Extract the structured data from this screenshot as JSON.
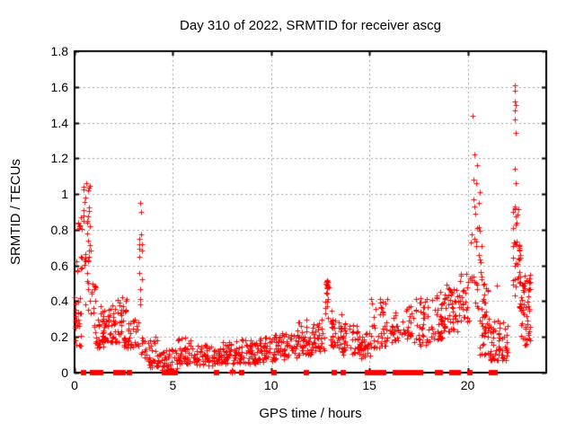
{
  "page": {
    "background": "#ffffff"
  },
  "chart_data": {
    "type": "scatter",
    "title": "Day 310 of 2022, SRMTID for receiver ascg",
    "xlabel": "GPS time / hours",
    "ylabel": "SRMTID / TECUs",
    "xlim": [
      0,
      24
    ],
    "ylim": [
      0,
      1.8
    ],
    "xticks": [
      0,
      5,
      10,
      15,
      20
    ],
    "xtick_labels": [
      "0",
      "5",
      "10",
      "15",
      "20"
    ],
    "yticks": [
      0,
      0.2,
      0.4,
      0.6,
      0.8,
      1.0,
      1.2,
      1.4,
      1.6,
      1.8
    ],
    "ytick_labels": [
      "0",
      "0.2",
      "0.4",
      "0.6",
      "0.8",
      "1",
      "1.2",
      "1.4",
      "1.6",
      "1.8"
    ],
    "grid": "dashed",
    "legend": "none",
    "marker": "plus",
    "marker_color": "#ff0000",
    "zero_marker": "filled-square",
    "grid_color": "#a0a0a0",
    "axis_color": "#000000",
    "seed": 310,
    "clusters_format": "[x_start, x_end, y_min, y_max, count, low_bias]",
    "clusters": [
      [
        0.0,
        0.35,
        0.15,
        0.45,
        24,
        1.3
      ],
      [
        0.05,
        0.4,
        0.55,
        0.68,
        7,
        1
      ],
      [
        0.1,
        0.4,
        0.8,
        0.88,
        7,
        1
      ],
      [
        0.45,
        0.78,
        0.85,
        1.06,
        13,
        1
      ],
      [
        0.45,
        0.85,
        0.6,
        0.85,
        16,
        1
      ],
      [
        0.55,
        1.1,
        0.32,
        0.58,
        18,
        1.2
      ],
      [
        0.9,
        1.6,
        0.14,
        0.3,
        36,
        1.2
      ],
      [
        1.3,
        2.4,
        0.17,
        0.38,
        55,
        1.3
      ],
      [
        2.2,
        2.65,
        0.27,
        0.44,
        16,
        1
      ],
      [
        2.5,
        3.3,
        0.14,
        0.3,
        40,
        1.2
      ],
      [
        3.28,
        3.44,
        0.33,
        0.78,
        12,
        1
      ],
      [
        3.4,
        4.3,
        0.03,
        0.2,
        45,
        1.4
      ],
      [
        4.3,
        5.2,
        0.01,
        0.13,
        42,
        1.2
      ],
      [
        5.2,
        6.2,
        0.05,
        0.2,
        52,
        1.4
      ],
      [
        6.2,
        7.2,
        0.04,
        0.16,
        50,
        1.3
      ],
      [
        7.2,
        8.2,
        0.05,
        0.18,
        55,
        1.3
      ],
      [
        8.2,
        9.2,
        0.05,
        0.19,
        55,
        1.3
      ],
      [
        9.2,
        10.2,
        0.06,
        0.2,
        55,
        1.3
      ],
      [
        10.2,
        11.3,
        0.07,
        0.22,
        58,
        1.3
      ],
      [
        11.3,
        12.1,
        0.1,
        0.3,
        45,
        1.4
      ],
      [
        12.1,
        12.7,
        0.12,
        0.3,
        35,
        1.3
      ],
      [
        12.72,
        12.95,
        0.27,
        0.52,
        20,
        0.8
      ],
      [
        13.0,
        13.6,
        0.14,
        0.37,
        35,
        1.3
      ],
      [
        13.6,
        14.4,
        0.1,
        0.28,
        40,
        1.3
      ],
      [
        14.4,
        15.1,
        0.08,
        0.22,
        40,
        1.2
      ],
      [
        15.1,
        15.95,
        0.14,
        0.42,
        42,
        1.4
      ],
      [
        16.0,
        16.6,
        0.17,
        0.35,
        24,
        1.2
      ],
      [
        16.6,
        17.15,
        0.19,
        0.38,
        24,
        1.2
      ],
      [
        17.2,
        18.05,
        0.15,
        0.43,
        40,
        1.3
      ],
      [
        18.1,
        18.8,
        0.18,
        0.46,
        40,
        1.3
      ],
      [
        18.8,
        19.5,
        0.22,
        0.5,
        45,
        1.2
      ],
      [
        19.5,
        20.15,
        0.28,
        0.56,
        30,
        1.2
      ],
      [
        20.15,
        20.75,
        0.5,
        0.85,
        22,
        1.1
      ],
      [
        20.3,
        21.05,
        0.3,
        0.5,
        20,
        1
      ],
      [
        20.6,
        21.15,
        0.1,
        0.33,
        30,
        1.2
      ],
      [
        21.15,
        22.05,
        0.07,
        0.3,
        60,
        1.5
      ],
      [
        22.25,
        22.6,
        0.72,
        0.95,
        12,
        1
      ],
      [
        22.3,
        22.7,
        0.42,
        0.72,
        25,
        1
      ],
      [
        22.6,
        23.2,
        0.28,
        0.55,
        40,
        1.1
      ],
      [
        22.7,
        23.2,
        0.14,
        0.28,
        20,
        1
      ],
      [
        7.85,
        8.18,
        0.0,
        0.015,
        5,
        1
      ]
    ],
    "points": [
      [
        0.6,
        1.06
      ],
      [
        3.34,
        0.95
      ],
      [
        3.36,
        0.9
      ],
      [
        12.8,
        0.51
      ],
      [
        12.82,
        0.5
      ],
      [
        19.3,
        0.47
      ],
      [
        21.5,
        0.49
      ],
      [
        20.25,
        1.44
      ],
      [
        20.35,
        1.22
      ],
      [
        20.5,
        1.16
      ],
      [
        20.28,
        1.08
      ],
      [
        20.45,
        1.06
      ],
      [
        20.6,
        1.01
      ],
      [
        20.3,
        0.97
      ],
      [
        20.55,
        0.95
      ],
      [
        20.35,
        0.93
      ],
      [
        20.4,
        0.89
      ],
      [
        22.38,
        1.61
      ],
      [
        22.42,
        1.58
      ],
      [
        22.4,
        1.52
      ],
      [
        22.45,
        1.5
      ],
      [
        22.42,
        1.47
      ],
      [
        22.4,
        1.42
      ],
      [
        22.44,
        1.34
      ],
      [
        22.4,
        1.14
      ],
      [
        22.45,
        1.06
      ],
      [
        22.4,
        0.92
      ]
    ],
    "zero_markers": [
      0.46,
      0.92,
      1.1,
      1.32,
      2.1,
      2.25,
      2.45,
      2.78,
      4.55,
      4.68,
      4.82,
      4.98,
      5.1,
      7.22,
      8.52,
      10.15,
      11.78,
      13.2,
      13.65,
      14.88,
      15.05,
      15.2,
      15.48,
      15.6,
      15.72,
      16.3,
      16.42,
      16.55,
      16.7,
      16.85,
      17.0,
      17.15,
      17.3,
      17.45,
      17.6,
      18.45,
      18.6,
      19.2,
      19.35,
      19.5,
      20.1,
      21.2,
      21.38
    ]
  }
}
